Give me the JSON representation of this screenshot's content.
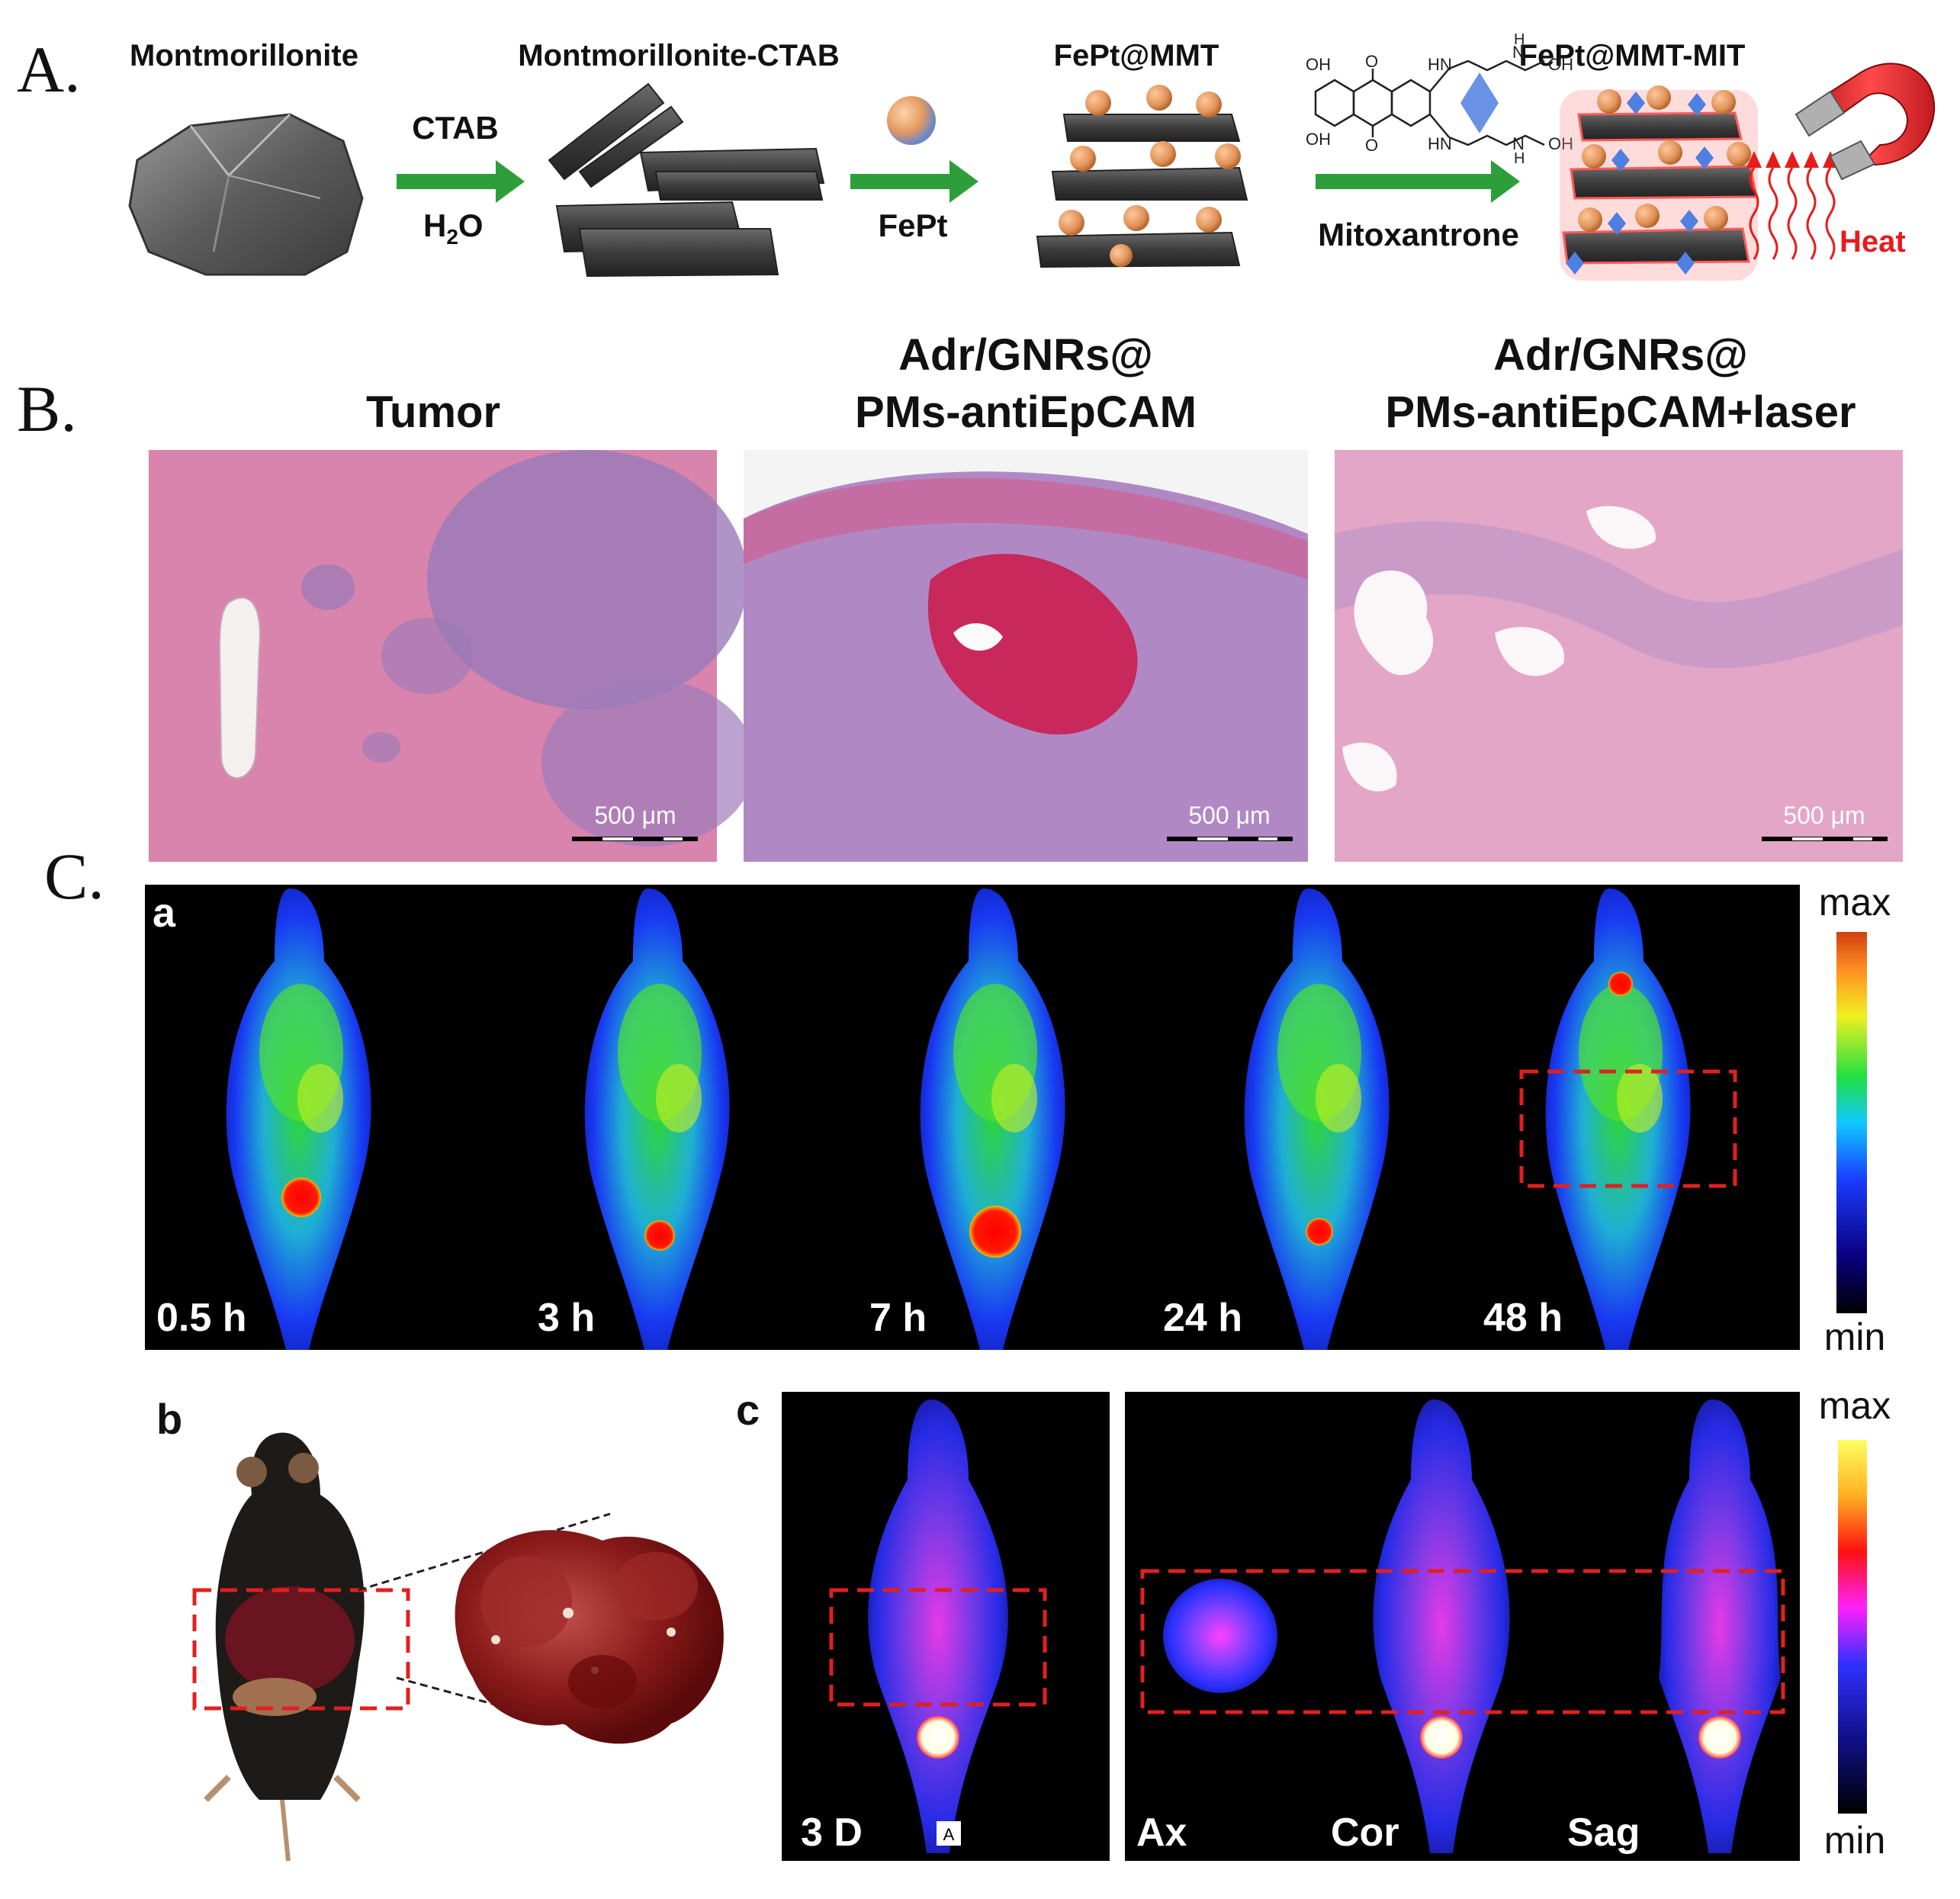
{
  "panel_a": {
    "label": "A.",
    "steps": {
      "s1": "Montmorillonite",
      "s2": "Montmorillonite-CTAB",
      "s3": "FePt@MMT",
      "s4": "FePt@MMT-MIT"
    },
    "arrows": {
      "a1_top": "CTAB",
      "a1_bottom_main": "H",
      "a1_bottom_sub": "2",
      "a1_bottom_tail": "O",
      "a2_bottom": "FePt",
      "a3_bottom": "Mitoxantrone"
    },
    "molecule_labels": {
      "oh1": "OH",
      "o1": "O",
      "hn1": "HN",
      "h1": "H",
      "n1": "N",
      "oh2": "OH",
      "oh3": "OH",
      "o2": "O",
      "hn2": "HN",
      "h2": "H",
      "n2": "N",
      "oh4": "OH"
    },
    "heat_label": "Heat",
    "colors": {
      "arrow": "#2e9e3a",
      "particle": "#e0935a",
      "drug": "#4f7fe0",
      "heat": "#e81b1b"
    }
  },
  "panel_b": {
    "label": "B.",
    "titles": {
      "t1": "Tumor",
      "t2_line1": "Adr/GNRs@",
      "t2_line2": "PMs-antiEpCAM",
      "t3_line1": "Adr/GNRs@",
      "t3_line2": "PMs-antiEpCAM+laser"
    },
    "scalebars": {
      "s1": "500 μm",
      "s2": "500 μm",
      "s3": "500 μm"
    }
  },
  "panel_c": {
    "label": "C.",
    "sub_a": "a",
    "sub_b": "b",
    "sub_c": "c",
    "timepoints": [
      "0.5 h",
      "3 h",
      "7 h",
      "24 h",
      "48 h"
    ],
    "colorbar_a": {
      "max": "max",
      "min": "min"
    },
    "colorbar_c": {
      "max": "max",
      "min": "min"
    },
    "views": {
      "v1": "3 D",
      "v2": "Ax",
      "v3": "Cor",
      "v4": "Sag"
    },
    "tiny_marker": "A"
  }
}
